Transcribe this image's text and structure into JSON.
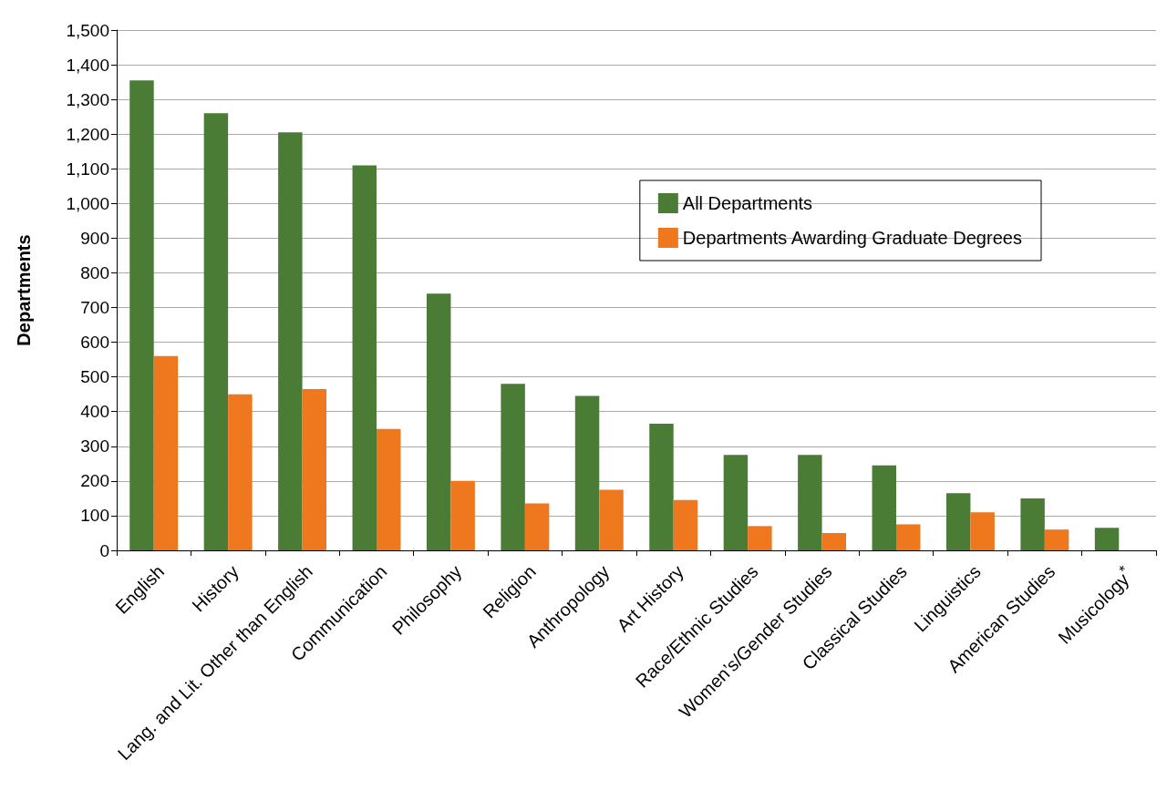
{
  "chart_data": {
    "type": "bar",
    "ylabel": "Departments",
    "categories": [
      "English",
      "History",
      "Lang. and Lit. Other than English",
      "Communication",
      "Philosophy",
      "Religion",
      "Anthropology",
      "Art History",
      "Race/Ethnic Studies",
      "Women’s/Gender Studies",
      "Classical Studies",
      "Linguistics",
      "American Studies",
      "Musicology$^{*}$"
    ],
    "series": [
      {
        "name": "All Departments",
        "color": "#4a7c35",
        "values": [
          1355,
          1260,
          1205,
          1110,
          740,
          480,
          445,
          365,
          275,
          275,
          245,
          165,
          150,
          65
        ]
      },
      {
        "name": "Departments Awarding Graduate Degrees",
        "color": "#ef771e",
        "values": [
          560,
          450,
          465,
          350,
          200,
          135,
          175,
          145,
          70,
          50,
          75,
          110,
          60,
          null
        ]
      }
    ],
    "ylim": [
      0,
      1500
    ],
    "yticks": [
      0,
      100,
      200,
      300,
      400,
      500,
      600,
      700,
      800,
      900,
      {
        "value": 1000,
        "label": "1,000"
      },
      {
        "value": 1100,
        "label": "1,100"
      },
      {
        "value": 1200,
        "label": "1,200"
      },
      {
        "value": 1300,
        "label": "1,300"
      },
      {
        "value": 1400,
        "label": "1,400"
      },
      {
        "value": 1500,
        "label": "1,500"
      }
    ],
    "grid": "y",
    "legend": "top right"
  }
}
